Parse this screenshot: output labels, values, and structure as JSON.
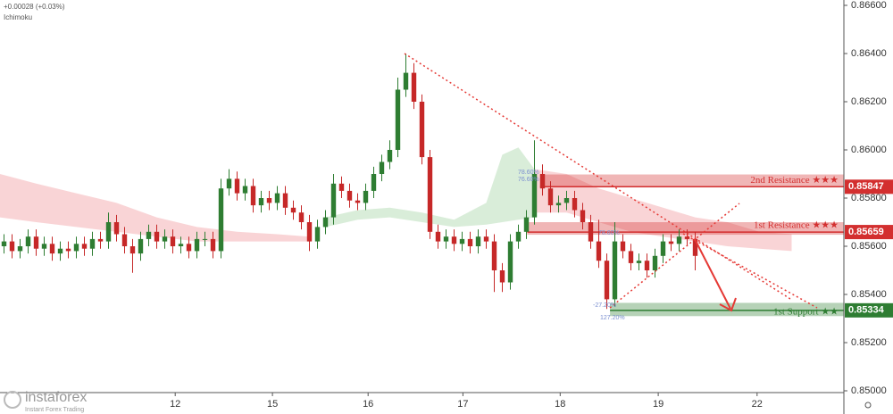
{
  "header": {
    "change": "+0.00028 (+0.03%)",
    "indicator": "Ichimoku"
  },
  "brand": {
    "name": "instaforex",
    "tagline": "Instant Forex Trading"
  },
  "chart_data": {
    "type": "candlestick",
    "xlim": [
      -0.5,
      104.5
    ],
    "ylim": [
      0.85,
      0.866
    ],
    "grid": false,
    "up_color": "#2e7d32",
    "down_color": "#c62828",
    "xticks": [
      {
        "value": 21.3,
        "label": "12"
      },
      {
        "value": 33.4,
        "label": "15"
      },
      {
        "value": 45.3,
        "label": "16"
      },
      {
        "value": 57.1,
        "label": "17"
      },
      {
        "value": 69.2,
        "label": "18"
      },
      {
        "value": 81.4,
        "label": "19"
      },
      {
        "value": 93.7,
        "label": "22"
      }
    ],
    "yticks": [
      {
        "value": 0.85,
        "label": "0.85000"
      },
      {
        "value": 0.852,
        "label": "0.85200"
      },
      {
        "value": 0.854,
        "label": "0.85400"
      },
      {
        "value": 0.856,
        "label": "0.85600"
      },
      {
        "value": 0.858,
        "label": "0.85800"
      },
      {
        "value": 0.86,
        "label": "0.86000"
      },
      {
        "value": 0.862,
        "label": "0.86200"
      },
      {
        "value": 0.864,
        "label": "0.86400"
      },
      {
        "value": 0.866,
        "label": "0.86600"
      }
    ],
    "candles": {
      "open": [
        0.856,
        0.8562,
        0.8558,
        0.856,
        0.8564,
        0.8559,
        0.8561,
        0.8557,
        0.8559,
        0.8558,
        0.8561,
        0.8559,
        0.8563,
        0.8562,
        0.857,
        0.8565,
        0.856,
        0.8557,
        0.8563,
        0.8566,
        0.8562,
        0.8564,
        0.856,
        0.8561,
        0.8558,
        0.8563,
        0.8563,
        0.8558,
        0.8584,
        0.8588,
        0.8582,
        0.8585,
        0.8577,
        0.858,
        0.8578,
        0.8582,
        0.8576,
        0.8574,
        0.857,
        0.8562,
        0.8568,
        0.8572,
        0.8586,
        0.8583,
        0.8579,
        0.8578,
        0.8583,
        0.859,
        0.8595,
        0.86,
        0.8625,
        0.8632,
        0.862,
        0.8597,
        0.8566,
        0.8562,
        0.8564,
        0.8561,
        0.8563,
        0.856,
        0.8564,
        0.8562,
        0.855,
        0.8545,
        0.8562,
        0.8566,
        0.8572,
        0.859,
        0.8584,
        0.8577,
        0.8578,
        0.858,
        0.8575,
        0.857,
        0.8562,
        0.8554,
        0.8538,
        0.8562,
        0.8558,
        0.8553,
        0.8554,
        0.855,
        0.8556,
        0.8562,
        0.8561,
        0.8564,
        0.8563
      ],
      "high": [
        0.8565,
        0.8565,
        0.8563,
        0.8567,
        0.8567,
        0.8564,
        0.8564,
        0.8562,
        0.8562,
        0.8564,
        0.8564,
        0.8566,
        0.8566,
        0.8574,
        0.8573,
        0.8568,
        0.8563,
        0.8566,
        0.8569,
        0.8569,
        0.8567,
        0.8567,
        0.8564,
        0.8564,
        0.8566,
        0.8566,
        0.8566,
        0.8588,
        0.8592,
        0.8591,
        0.8588,
        0.8588,
        0.8583,
        0.8583,
        0.8585,
        0.8585,
        0.8579,
        0.8577,
        0.8573,
        0.8571,
        0.8575,
        0.859,
        0.8589,
        0.8586,
        0.8582,
        0.8586,
        0.8593,
        0.8598,
        0.8604,
        0.863,
        0.864,
        0.8636,
        0.8623,
        0.86,
        0.8569,
        0.8567,
        0.8567,
        0.8566,
        0.8566,
        0.8567,
        0.8567,
        0.8565,
        0.8553,
        0.8565,
        0.8569,
        0.8575,
        0.8604,
        0.8594,
        0.8587,
        0.8581,
        0.8583,
        0.8583,
        0.8578,
        0.8573,
        0.8571,
        0.8557,
        0.857,
        0.8565,
        0.8561,
        0.8557,
        0.8557,
        0.8559,
        0.8565,
        0.8565,
        0.8567,
        0.8567,
        0.8566
      ],
      "low": [
        0.8557,
        0.8555,
        0.8555,
        0.8557,
        0.8556,
        0.8556,
        0.8554,
        0.8554,
        0.8555,
        0.8555,
        0.8556,
        0.8556,
        0.8559,
        0.8559,
        0.8562,
        0.8557,
        0.8549,
        0.8554,
        0.856,
        0.8559,
        0.8559,
        0.8557,
        0.8557,
        0.8555,
        0.8555,
        0.856,
        0.8555,
        0.8555,
        0.8581,
        0.8579,
        0.8579,
        0.8574,
        0.8574,
        0.8575,
        0.8575,
        0.8573,
        0.8571,
        0.8567,
        0.8558,
        0.8559,
        0.8565,
        0.8569,
        0.858,
        0.8576,
        0.8575,
        0.8575,
        0.858,
        0.8587,
        0.8592,
        0.8597,
        0.8622,
        0.8617,
        0.8594,
        0.8563,
        0.8559,
        0.8559,
        0.8558,
        0.8558,
        0.8557,
        0.8557,
        0.8559,
        0.8541,
        0.8541,
        0.8542,
        0.8559,
        0.8563,
        0.8569,
        0.8581,
        0.8574,
        0.8574,
        0.8575,
        0.8572,
        0.8567,
        0.8559,
        0.8551,
        0.8534,
        0.8535,
        0.8555,
        0.855,
        0.855,
        0.8547,
        0.8547,
        0.8553,
        0.8558,
        0.8558,
        0.856,
        0.855
      ],
      "close": [
        0.8562,
        0.8558,
        0.856,
        0.8564,
        0.8559,
        0.8561,
        0.8557,
        0.8559,
        0.8558,
        0.8561,
        0.8559,
        0.8563,
        0.8562,
        0.857,
        0.8565,
        0.856,
        0.8557,
        0.8563,
        0.8566,
        0.8562,
        0.8564,
        0.856,
        0.8561,
        0.8558,
        0.8563,
        0.8563,
        0.8558,
        0.8584,
        0.8588,
        0.8582,
        0.8585,
        0.8577,
        0.858,
        0.8578,
        0.8582,
        0.8576,
        0.8574,
        0.857,
        0.8562,
        0.8568,
        0.8572,
        0.8586,
        0.8583,
        0.8579,
        0.8578,
        0.8583,
        0.859,
        0.8595,
        0.86,
        0.8625,
        0.8632,
        0.862,
        0.8597,
        0.8566,
        0.8562,
        0.8564,
        0.8561,
        0.8563,
        0.856,
        0.8564,
        0.8562,
        0.855,
        0.8545,
        0.8562,
        0.8566,
        0.8572,
        0.859,
        0.8584,
        0.8577,
        0.8578,
        0.858,
        0.8575,
        0.857,
        0.8562,
        0.8554,
        0.8538,
        0.8562,
        0.8558,
        0.8553,
        0.8554,
        0.855,
        0.8556,
        0.8562,
        0.8561,
        0.8564,
        0.8563,
        0.8556
      ]
    },
    "clouds": [
      {
        "color": "#f8c9cc",
        "x": [
          -0.5,
          4,
          9,
          14,
          19,
          24,
          29,
          34,
          38
        ],
        "upper": [
          0.859,
          0.8586,
          0.8582,
          0.8578,
          0.8572,
          0.8568,
          0.8566,
          0.8565,
          0.8564
        ],
        "lower": [
          0.8572,
          0.857,
          0.8568,
          0.8566,
          0.8564,
          0.8562,
          0.8562,
          0.8562,
          0.8562
        ]
      },
      {
        "color": "#cfe8cf",
        "x": [
          40,
          44,
          48,
          52,
          56,
          60,
          62,
          64,
          66
        ],
        "upper": [
          0.8572,
          0.8575,
          0.8576,
          0.8574,
          0.8571,
          0.8578,
          0.8598,
          0.8601,
          0.8592
        ],
        "lower": [
          0.8568,
          0.8571,
          0.8572,
          0.857,
          0.8568,
          0.8569,
          0.857,
          0.8571,
          0.8572
        ]
      },
      {
        "color": "#f8c9cc",
        "x": [
          66,
          70,
          74,
          78,
          82,
          86,
          90,
          94,
          98
        ],
        "upper": [
          0.8592,
          0.859,
          0.8584,
          0.858,
          0.8576,
          0.8572,
          0.857,
          0.8566,
          0.8565
        ],
        "lower": [
          0.8574,
          0.8574,
          0.857,
          0.8566,
          0.8564,
          0.8562,
          0.856,
          0.8559,
          0.8558
        ]
      }
    ],
    "levels": [
      {
        "name": "2nd Resistance ★★★",
        "value": 0.85847,
        "label": "0.85847",
        "zone": [
          0.85898,
          0.85847
        ],
        "start": 66.7,
        "color": "#d32f2f"
      },
      {
        "name": "1st Resistance ★★★",
        "value": 0.85659,
        "label": "0.85659",
        "zone": [
          0.857,
          0.85648
        ],
        "start": 65.1,
        "color": "#d32f2f"
      },
      {
        "name": "1st Support ★★",
        "value": 0.85334,
        "label": "0.85334",
        "zone": [
          0.85365,
          0.8531
        ],
        "start": 75.4,
        "color": "#2e7d32"
      }
    ],
    "fib_labels": [
      "78.60%",
      "76.60%",
      "78.60%",
      "-27.20%",
      "127.20%"
    ]
  }
}
